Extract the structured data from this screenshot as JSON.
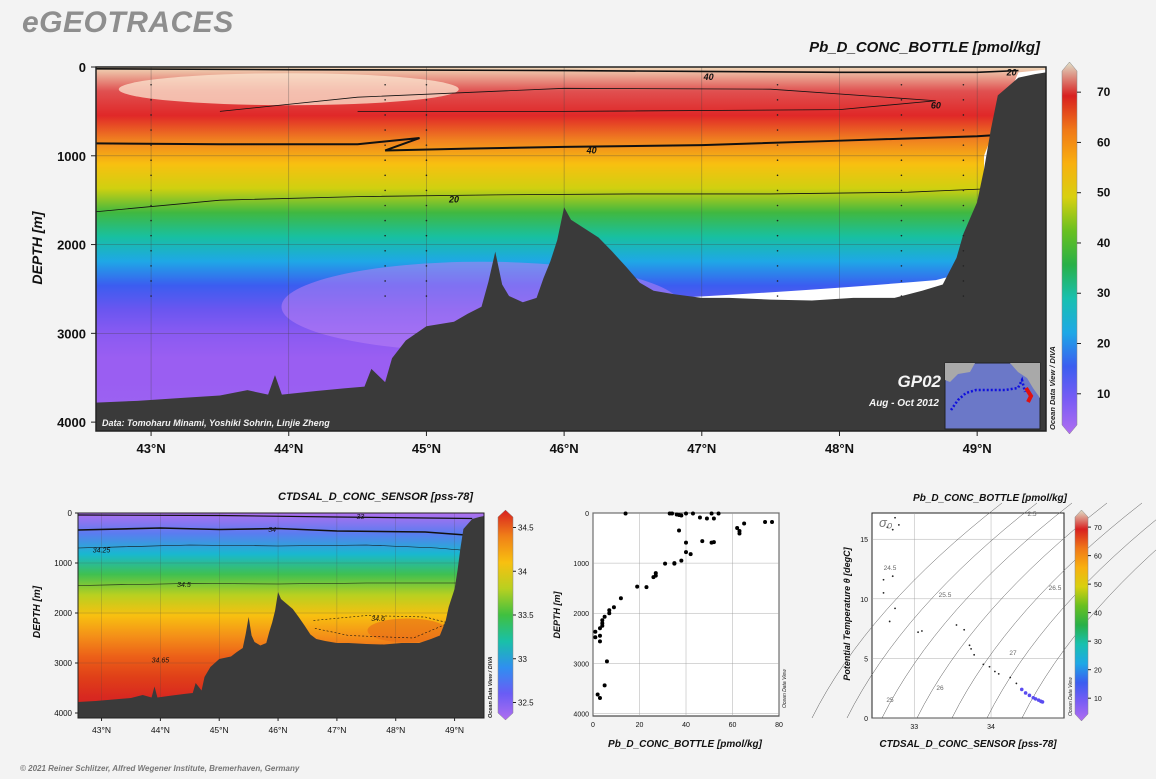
{
  "site": {
    "brand": "eGEOTRACES",
    "copyright": "© 2021 Reiner Schlitzer, Alfred Wegener Institute, Bremerhaven, Germany"
  },
  "main": {
    "title": "Pb_D_CONC_BOTTLE [pmol/kg]",
    "ylabel": "DEPTH [m]",
    "data_credit": "Data: Tomoharu Minami, Yoshiki Sohrin, Linjie Zheng",
    "cruise": "GP02",
    "dates": "Aug - Oct 2012",
    "odv": "Ocean Data View / DIVA"
  },
  "sal": {
    "title": "CTDSAL_D_CONC_SENSOR [pss-78]",
    "ylabel": "DEPTH [m]",
    "odv": "Ocean Data View / DIVA"
  },
  "prof": {
    "xlabel": "Pb_D_CONC_BOTTLE [pmol/kg]",
    "ylabel": "DEPTH [m]",
    "odv": "Ocean Data View"
  },
  "ts": {
    "title": "Pb_D_CONC_BOTTLE [pmol/kg]",
    "xlabel": "CTDSAL_D_CONC_SENSOR [pss-78]",
    "ylabel": "Potential Temperature θ [degC]",
    "sigma_label": "σ₀",
    "odv": "Ocean Data View"
  },
  "colors": {
    "pb_scale": [
      "#b06ef0",
      "#7a5cf5",
      "#3b5df0",
      "#1ea8e6",
      "#18c0b0",
      "#28b048",
      "#68c020",
      "#d8d010",
      "#f8b010",
      "#f07818",
      "#d82020",
      "#e0e0c8"
    ],
    "sal_scale": [
      "#b06ef0",
      "#6a5cf5",
      "#2f8ff0",
      "#19c0a8",
      "#40c040",
      "#b8d020",
      "#f8c010",
      "#f08018",
      "#d82020"
    ],
    "bathymetry": "#3a3a3a",
    "contour": "#111111"
  },
  "chart_data": [
    {
      "type": "heatmap",
      "name": "main-section",
      "title": "Pb_D_CONC_BOTTLE [pmol/kg]",
      "ylabel": "DEPTH [m]",
      "x_ticks": [
        "43°N",
        "44°N",
        "45°N",
        "46°N",
        "47°N",
        "48°N",
        "49°N"
      ],
      "x_values": [
        43,
        44,
        45,
        46,
        47,
        48,
        49
      ],
      "xlim": [
        42.6,
        49.5
      ],
      "y_ticks": [
        0,
        1000,
        2000,
        3000,
        4000
      ],
      "ylim": [
        0,
        4100
      ],
      "colorbar_ticks": [
        10,
        20,
        30,
        40,
        50,
        60,
        70
      ],
      "colorbar_range": [
        2,
        76
      ],
      "contour_labels": [
        "40",
        "60",
        "20",
        "40",
        "20"
      ],
      "bathymetry": [
        [
          42.6,
          3780
        ],
        [
          42.9,
          3760
        ],
        [
          43.2,
          3730
        ],
        [
          43.5,
          3700
        ],
        [
          43.7,
          3640
        ],
        [
          43.85,
          3690
        ],
        [
          43.9,
          3470
        ],
        [
          43.95,
          3690
        ],
        [
          44.2,
          3650
        ],
        [
          44.4,
          3620
        ],
        [
          44.55,
          3600
        ],
        [
          44.6,
          3400
        ],
        [
          44.7,
          3550
        ],
        [
          44.75,
          3280
        ],
        [
          44.85,
          3080
        ],
        [
          45.0,
          2920
        ],
        [
          45.2,
          2870
        ],
        [
          45.3,
          2780
        ],
        [
          45.4,
          2700
        ],
        [
          45.45,
          2420
        ],
        [
          45.5,
          2080
        ],
        [
          45.55,
          2450
        ],
        [
          45.6,
          2580
        ],
        [
          45.7,
          2650
        ],
        [
          45.8,
          2600
        ],
        [
          45.85,
          2380
        ],
        [
          45.9,
          2190
        ],
        [
          45.95,
          1950
        ],
        [
          46.0,
          1580
        ],
        [
          46.05,
          1720
        ],
        [
          46.15,
          1820
        ],
        [
          46.25,
          1920
        ],
        [
          46.35,
          2080
        ],
        [
          46.45,
          2250
        ],
        [
          46.55,
          2430
        ],
        [
          46.65,
          2520
        ],
        [
          46.8,
          2560
        ],
        [
          47.0,
          2600
        ],
        [
          47.2,
          2600
        ],
        [
          47.5,
          2620
        ],
        [
          47.8,
          2630
        ],
        [
          48.1,
          2600
        ],
        [
          48.4,
          2600
        ],
        [
          48.6,
          2520
        ],
        [
          48.75,
          2450
        ],
        [
          48.85,
          2150
        ],
        [
          48.9,
          1880
        ],
        [
          48.95,
          1700
        ],
        [
          49.0,
          1520
        ],
        [
          49.05,
          1150
        ],
        [
          49.1,
          700
        ],
        [
          49.15,
          320
        ],
        [
          49.3,
          120
        ],
        [
          49.42,
          80
        ],
        [
          49.5,
          60
        ]
      ],
      "stations": [
        43.0,
        44.7,
        45.0,
        47.55,
        48.45,
        48.9
      ]
    },
    {
      "type": "heatmap",
      "name": "salinity-section",
      "title": "CTDSAL_D_CONC_SENSOR [pss-78]",
      "ylabel": "DEPTH [m]",
      "x_ticks": [
        "43°N",
        "44°N",
        "45°N",
        "46°N",
        "47°N",
        "48°N",
        "49°N"
      ],
      "x_values": [
        43,
        44,
        45,
        46,
        47,
        48,
        49
      ],
      "xlim": [
        42.6,
        49.5
      ],
      "y_ticks": [
        0,
        1000,
        2000,
        3000,
        4000
      ],
      "ylim": [
        0,
        4100
      ],
      "colorbar_ticks": [
        "32.5",
        "33",
        "33.5",
        "34",
        "34.5"
      ],
      "colorbar_range": [
        32.3,
        34.7
      ],
      "contour_labels": [
        "33",
        "34",
        "34.25",
        "34.5",
        "34.6",
        "34.65"
      ]
    },
    {
      "type": "scatter",
      "name": "pb-profile",
      "xlabel": "Pb_D_CONC_BOTTLE [pmol/kg]",
      "ylabel": "DEPTH [m]",
      "x_ticks": [
        0,
        20,
        40,
        60,
        80
      ],
      "xlim": [
        0,
        80
      ],
      "y_ticks": [
        0,
        1000,
        2000,
        3000,
        4000
      ],
      "ylim": [
        0,
        4050
      ],
      "points": [
        [
          14,
          10
        ],
        [
          33,
          10
        ],
        [
          34,
          10
        ],
        [
          40,
          10
        ],
        [
          43,
          10
        ],
        [
          51,
          10
        ],
        [
          54,
          10
        ],
        [
          36,
          30
        ],
        [
          37,
          40
        ],
        [
          38,
          50
        ],
        [
          46,
          90
        ],
        [
          49,
          110
        ],
        [
          52,
          110
        ],
        [
          74,
          180
        ],
        [
          77,
          180
        ],
        [
          65,
          210
        ],
        [
          62,
          300
        ],
        [
          37,
          350
        ],
        [
          63,
          360
        ],
        [
          63,
          410
        ],
        [
          47,
          560
        ],
        [
          51,
          590
        ],
        [
          52,
          580
        ],
        [
          40,
          590
        ],
        [
          40,
          780
        ],
        [
          42,
          820
        ],
        [
          38,
          950
        ],
        [
          35,
          1000
        ],
        [
          31,
          1010
        ],
        [
          35,
          1010
        ],
        [
          27,
          1200
        ],
        [
          27,
          1250
        ],
        [
          26,
          1280
        ],
        [
          23,
          1480
        ],
        [
          19,
          1470
        ],
        [
          12,
          1700
        ],
        [
          9,
          1880
        ],
        [
          7,
          1940
        ],
        [
          7,
          2000
        ],
        [
          5,
          2070
        ],
        [
          4,
          2140
        ],
        [
          4,
          2200
        ],
        [
          4,
          2250
        ],
        [
          3,
          2300
        ],
        [
          1,
          2370
        ],
        [
          1,
          2480
        ],
        [
          3,
          2450
        ],
        [
          3,
          2560
        ],
        [
          6,
          2960
        ],
        [
          5,
          3440
        ],
        [
          2,
          3620
        ],
        [
          3,
          3690
        ]
      ]
    },
    {
      "type": "scatter",
      "name": "ts-diagram",
      "title": "Pb_D_CONC_BOTTLE [pmol/kg]",
      "xlabel": "CTDSAL_D_CONC_SENSOR [pss-78]",
      "ylabel": "Potential Temperature θ [degC]",
      "x_ticks": [
        "33",
        "34"
      ],
      "x_values": [
        33,
        34
      ],
      "xlim": [
        32.45,
        34.95
      ],
      "y_ticks": [
        0,
        5,
        10,
        15
      ],
      "ylim": [
        0,
        17.2
      ],
      "isopycnal_labels": [
        "24.5",
        "25.5",
        "26.5",
        "27",
        "25",
        "26",
        "2.5"
      ],
      "points": [
        [
          32.75,
          16.8
        ],
        [
          32.8,
          16.2
        ],
        [
          32.65,
          16.0
        ],
        [
          32.72,
          15.8
        ],
        [
          32.6,
          11.6
        ],
        [
          32.72,
          11.9
        ],
        [
          32.75,
          9.2
        ],
        [
          32.6,
          10.5
        ],
        [
          32.68,
          8.1
        ],
        [
          33.05,
          7.2
        ],
        [
          33.1,
          7.3
        ],
        [
          33.55,
          7.8
        ],
        [
          33.65,
          7.4
        ],
        [
          33.72,
          6.1
        ],
        [
          33.74,
          5.8
        ],
        [
          33.78,
          5.3
        ],
        [
          33.9,
          4.5
        ],
        [
          33.98,
          4.3
        ],
        [
          34.05,
          3.9
        ],
        [
          34.1,
          3.7
        ],
        [
          34.25,
          3.4
        ],
        [
          34.33,
          2.9
        ],
        [
          34.4,
          2.4
        ],
        [
          34.45,
          2.1
        ],
        [
          34.5,
          1.9
        ],
        [
          34.55,
          1.7
        ],
        [
          34.58,
          1.6
        ],
        [
          34.62,
          1.5
        ],
        [
          34.65,
          1.4
        ],
        [
          34.67,
          1.35
        ]
      ],
      "colorbar_ticks": [
        10,
        20,
        30,
        40,
        50,
        60,
        70
      ],
      "colorbar_range": [
        2,
        76
      ]
    }
  ]
}
